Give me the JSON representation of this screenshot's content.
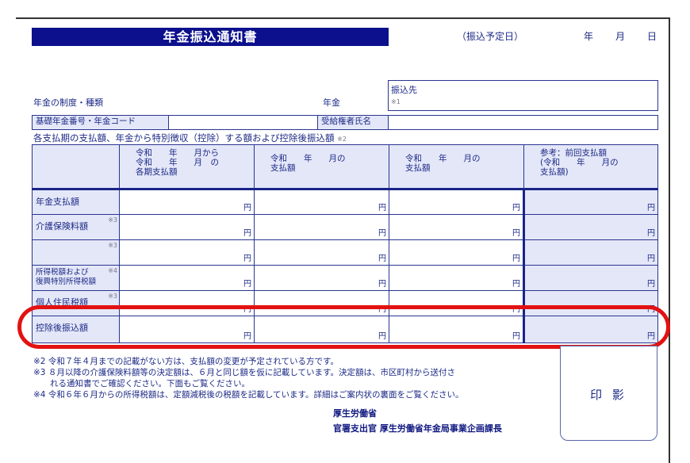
{
  "title": "年金振込通知書",
  "scheduled_date": {
    "label": "（振込予定日）",
    "year": "年",
    "month": "月",
    "day": "日"
  },
  "pension_type_label": "年金の制度・種類",
  "pension_suffix": "年金",
  "transfer_to": {
    "label": "振込先",
    "note": "※1"
  },
  "basic_number_label": "基礎年金番号・年金コード",
  "recipient_name_label": "受給権者氏名",
  "caption": "各支払期の支払額、年金から特別徴収（控除）する額および控除後振込額",
  "caption_note": "※2",
  "table": {
    "headers": [
      "",
      [
        "令和　　年　　月から",
        "令和　　年　　月　の",
        "各期支払額"
      ],
      [
        "令和　　年　　月の",
        "支払額"
      ],
      [
        "令和　　年　　月の",
        "支払額"
      ],
      [
        "参考：前回支払額",
        "(令和　　年　　月の",
        "支払額)"
      ]
    ],
    "rows": [
      {
        "label": "年金支払額",
        "note": ""
      },
      {
        "label": "介護保険料額",
        "note": "※3"
      },
      {
        "label": "",
        "note": "※3"
      },
      {
        "label": "所得税額および\n復興特別所得税額",
        "note": "※4"
      },
      {
        "label": "個人住民税額",
        "note": "※3"
      },
      {
        "label": "控除後振込額",
        "note": ""
      }
    ],
    "yen": "円"
  },
  "notes": [
    "※2 令和７年４月までの記載がない方は、支払額の変更が予定されている方です。",
    "※3 ８月以降の介護保険料額等の決定額は、６月と同じ額を仮に記載しています。決定額は、市区町村から送付さ",
    "　　れる通知書でご確認ください。下面もご覧ください。",
    "※4 令和６年６月からの所得税額は、定額減税後の税額を記載しています。詳細はご案内状の裏面をご覧ください。"
  ],
  "issuer": {
    "line1": "厚生労働省",
    "line2": "官署支出官 厚生労働省年金局事業企画課長"
  },
  "seal_label": "印 影",
  "colors": {
    "navy": "#0c108c",
    "highlight": "#e31212",
    "cell_fill": "#e4e7f8"
  }
}
